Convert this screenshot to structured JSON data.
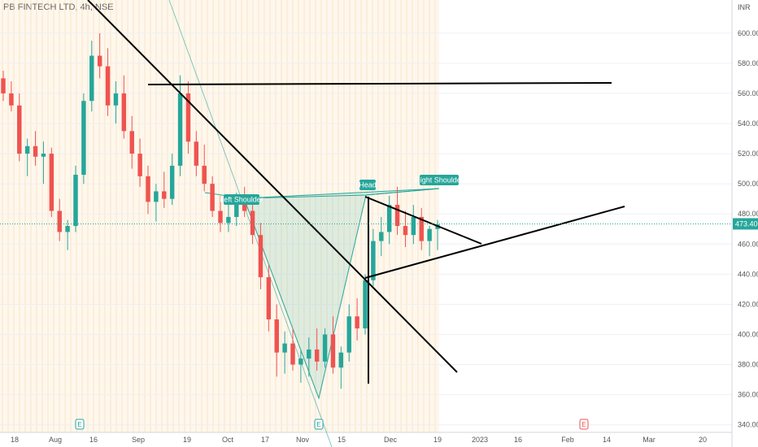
{
  "chart_data": {
    "type": "candlestick",
    "title": "PB FINTECH LTD, 4h, NSE",
    "currency_label": "INR",
    "ylim": [
      335,
      622
    ],
    "y_ticks": [
      "340.00",
      "360.00",
      "380.00",
      "400.00",
      "420.00",
      "440.00",
      "460.00",
      "480.00",
      "500.00",
      "520.00",
      "540.00",
      "560.00",
      "580.00",
      "600.00"
    ],
    "x_ticks": [
      "18",
      "Aug",
      "16",
      "Sep",
      "19",
      "Oct",
      "17",
      "Nov",
      "15",
      "Dec",
      "19",
      "2023",
      "16",
      "Feb",
      "14",
      "Mar",
      "20"
    ],
    "last_price": "473.40",
    "colors": {
      "up": "#26a69a",
      "down": "#ef5350",
      "price_line": "#26a69a",
      "pattern_fill": "#26a69a",
      "session_band": "#fde9cc"
    },
    "annotations": [
      {
        "label": "Left Shoulder",
        "type": "pattern-label"
      },
      {
        "label": "Head",
        "type": "pattern-label"
      },
      {
        "label": "Right Shoulder",
        "type": "pattern-label"
      }
    ],
    "event_markers": [
      "E",
      "E",
      "E"
    ],
    "series": [
      {
        "values": [
          [
            570,
            575,
            555,
            560
          ],
          [
            560,
            568,
            548,
            552
          ],
          [
            552,
            560,
            515,
            520
          ],
          [
            520,
            530,
            505,
            525
          ],
          [
            525,
            535,
            512,
            518
          ],
          [
            518,
            528,
            500,
            520
          ],
          [
            520,
            524,
            478,
            482
          ],
          [
            482,
            490,
            462,
            468
          ],
          [
            468,
            476,
            456,
            472
          ],
          [
            472,
            512,
            468,
            506
          ],
          [
            506,
            560,
            500,
            555
          ],
          [
            555,
            595,
            548,
            585
          ],
          [
            585,
            600,
            570,
            578
          ],
          [
            578,
            590,
            545,
            552
          ],
          [
            552,
            568,
            540,
            560
          ],
          [
            560,
            572,
            530,
            535
          ],
          [
            535,
            545,
            510,
            520
          ],
          [
            520,
            530,
            498,
            505
          ],
          [
            505,
            512,
            480,
            488
          ],
          [
            488,
            500,
            475,
            495
          ],
          [
            495,
            508,
            484,
            490
          ],
          [
            490,
            520,
            486,
            512
          ],
          [
            512,
            572,
            505,
            560
          ],
          [
            560,
            568,
            520,
            528
          ],
          [
            528,
            535,
            505,
            512
          ],
          [
            512,
            526,
            495,
            500
          ],
          [
            500,
            505,
            478,
            482
          ],
          [
            482,
            492,
            468,
            474
          ],
          [
            474,
            486,
            468,
            478
          ],
          [
            478,
            494,
            472,
            488
          ],
          [
            488,
            498,
            478,
            482
          ],
          [
            482,
            488,
            460,
            466
          ],
          [
            466,
            474,
            430,
            438
          ],
          [
            438,
            446,
            402,
            410
          ],
          [
            410,
            420,
            372,
            388
          ],
          [
            388,
            402,
            374,
            394
          ],
          [
            394,
            404,
            376,
            380
          ],
          [
            380,
            390,
            368,
            384
          ],
          [
            384,
            398,
            372,
            390
          ],
          [
            390,
            404,
            376,
            382
          ],
          [
            382,
            404,
            378,
            400
          ],
          [
            400,
            412,
            374,
            378
          ],
          [
            378,
            392,
            364,
            388
          ],
          [
            388,
            420,
            382,
            412
          ],
          [
            412,
            424,
            396,
            404
          ],
          [
            404,
            440,
            400,
            436
          ],
          [
            436,
            470,
            432,
            462
          ],
          [
            462,
            478,
            452,
            468
          ],
          [
            468,
            492,
            460,
            486
          ],
          [
            486,
            498,
            466,
            472
          ],
          [
            472,
            482,
            458,
            466
          ],
          [
            466,
            486,
            460,
            478
          ],
          [
            478,
            484,
            456,
            462
          ],
          [
            462,
            472,
            452,
            470
          ],
          [
            470,
            476,
            456,
            473
          ]
        ]
      }
    ]
  }
}
